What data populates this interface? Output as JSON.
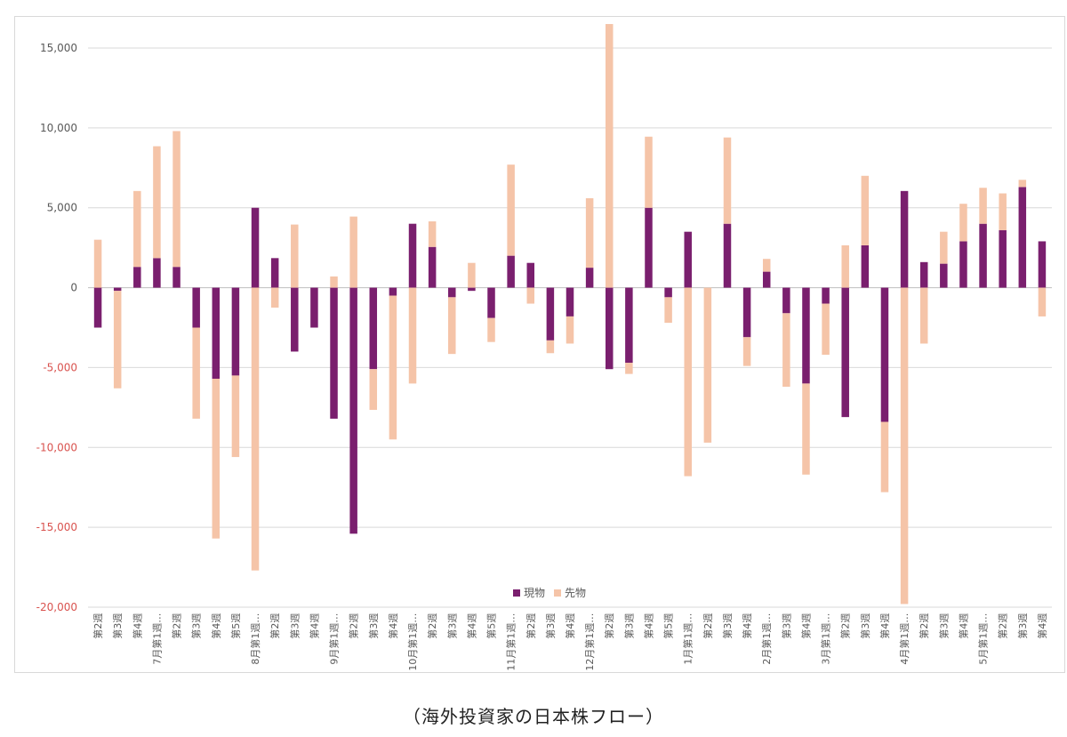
{
  "chart_data": {
    "type": "bar",
    "stacked": true,
    "legend_position": "bottom-center",
    "grid": true,
    "ylim": [
      -20000,
      15000
    ],
    "yticks": [
      15000,
      10000,
      5000,
      0,
      -5000,
      -10000,
      -15000,
      -20000
    ],
    "ytick_labels": [
      "15,000",
      "10,000",
      "5,000",
      "0",
      "-5,000",
      "-10,000",
      "-15,000",
      "-20,000"
    ],
    "categories": [
      "第2週",
      "第3週",
      "第4週",
      "7月第1週",
      "第2週",
      "第3週",
      "第4週",
      "第5週",
      "8月第1週",
      "第2週",
      "第3週",
      "第4週",
      "9月第1週",
      "第2週",
      "第3週",
      "第4週",
      "10月第1週",
      "第2週",
      "第3週",
      "第4週",
      "第5週",
      "11月第1週",
      "第2週",
      "第3週",
      "第4週",
      "12月第1週",
      "第2週",
      "第3週",
      "第4週",
      "第5週",
      "1月第1週",
      "第2週",
      "第3週",
      "第4週",
      "2月第1週",
      "第3週",
      "第4週",
      "3月第1週",
      "第2週",
      "第3週",
      "第4週",
      "4月第1週",
      "第2週",
      "第3週",
      "第4週",
      "5月第1週",
      "第2週",
      "第3週",
      "第4週"
    ],
    "tick_labels": [
      "第2週",
      "第3週",
      "第4週",
      "7月第1週…",
      "第2週",
      "第3週",
      "第4週",
      "第5週",
      "8月第1週…",
      "第2週",
      "第3週",
      "第4週",
      "9月第1週…",
      "第2週",
      "第3週",
      "第4週",
      "10月第1週…",
      "第2週",
      "第3週",
      "第4週",
      "第5週",
      "11月第1週…",
      "第2週",
      "第3週",
      "第4週",
      "12月第1週…",
      "第2週",
      "第3週",
      "第4週",
      "第5週",
      "1月第1週…",
      "第2週",
      "第3週",
      "第4週",
      "2月第1週…",
      "第3週",
      "第4週",
      "3月第1週…",
      "第2週",
      "第3週",
      "第4週",
      "4月第1週…",
      "第2週",
      "第3週",
      "第4週",
      "5月第1週…",
      "第2週",
      "第3週",
      "第4週"
    ],
    "series": [
      {
        "name": "現物",
        "color": "#7a1f6e",
        "values": [
          -2500,
          -200,
          1300,
          1850,
          1300,
          -2500,
          -5700,
          -5500,
          5000,
          1850,
          -4000,
          -2500,
          -8200,
          -15400,
          -5100,
          -500,
          4000,
          2550,
          -600,
          -200,
          -1900,
          2000,
          1550,
          -3300,
          -1800,
          1250,
          -5100,
          -4700,
          5000,
          -600,
          3500,
          0,
          4000,
          -3100,
          1000,
          -1600,
          -6000,
          -1000,
          -8100,
          2650,
          -8400,
          6050,
          1600,
          1500,
          2900,
          4000,
          3600,
          6300,
          2900
        ]
      },
      {
        "name": "先物",
        "color": "#f5c4a8",
        "values": [
          3000,
          -6100,
          4750,
          7000,
          8500,
          -5700,
          -10000,
          -5100,
          -17700,
          -1250,
          3950,
          0,
          700,
          4450,
          -2550,
          -9000,
          -6000,
          1600,
          -3550,
          1550,
          -1500,
          5700,
          -1000,
          -800,
          -1700,
          4350,
          16500,
          -700,
          4450,
          -1600,
          -11800,
          -9700,
          5400,
          -1800,
          800,
          -4600,
          -5700,
          -3200,
          2650,
          4350,
          -4400,
          -19800,
          -3500,
          2000,
          2350,
          2250,
          2300,
          450,
          -1800
        ]
      }
    ]
  },
  "caption": "（海外投資家の日本株フロー）"
}
